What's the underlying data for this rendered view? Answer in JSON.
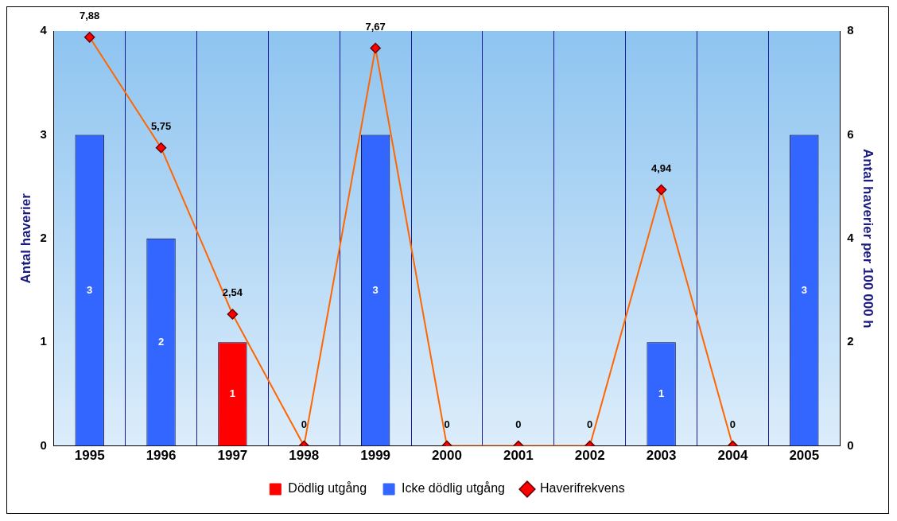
{
  "chart_data": {
    "type": "bar",
    "stacked": true,
    "categories": [
      "1995",
      "1996",
      "1997",
      "1998",
      "1999",
      "2000",
      "2001",
      "2002",
      "2003",
      "2004",
      "2005"
    ],
    "series": [
      {
        "name": "Dödlig utgång",
        "color": "#ff0000",
        "values": [
          0,
          0,
          1,
          0,
          0,
          0,
          0,
          0,
          0,
          0,
          0
        ],
        "value_labels": [
          null,
          null,
          "1",
          null,
          null,
          null,
          null,
          null,
          null,
          null,
          null
        ]
      },
      {
        "name": "Icke dödlig utgång",
        "color": "#3366ff",
        "values": [
          3,
          2,
          0,
          0,
          3,
          0,
          0,
          0,
          1,
          0,
          3
        ],
        "value_labels": [
          "3",
          "2",
          null,
          null,
          "3",
          null,
          null,
          null,
          "1",
          null,
          "3"
        ]
      },
      {
        "name": "Haverifrekvens",
        "type": "line",
        "axis": "y2",
        "color": "#ff6600",
        "marker": "diamond",
        "values": [
          7.88,
          5.75,
          2.54,
          0,
          7.67,
          0,
          0,
          0,
          4.94,
          0,
          null
        ],
        "value_labels": [
          "7,88",
          "5,75",
          "2,54",
          "0",
          "7,67",
          "0",
          "0",
          "0",
          "4,94",
          "0",
          null
        ]
      }
    ],
    "ylabel": "Antal haverier",
    "y2label": "Antal haverier per 100 000 h",
    "ylim": [
      0,
      4
    ],
    "yticks": [
      0,
      1,
      2,
      3,
      4
    ],
    "y2lim": [
      0,
      8
    ],
    "y2ticks": [
      0,
      2,
      4,
      6,
      8
    ],
    "grid": "x",
    "legend": "bottom"
  }
}
